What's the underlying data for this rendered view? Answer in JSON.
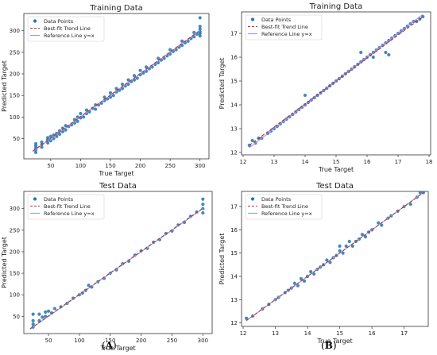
{
  "figure": {
    "letters": {
      "a": "A",
      "b": "B"
    },
    "colors": {
      "points": "#1f77b4",
      "trend": "#d62728",
      "reference": "#9b8ff0",
      "reference_test": "#7aa6e0",
      "axis": "#333333"
    }
  },
  "chart_data": [
    {
      "type": "scatter",
      "title": "Training Data",
      "xlabel": "True Target",
      "ylabel": "Predicted Target",
      "xlim": [
        5,
        315
      ],
      "ylim": [
        3,
        340
      ],
      "xticks": [
        50,
        100,
        150,
        200,
        250,
        300
      ],
      "yticks": [
        50,
        100,
        150,
        200,
        250,
        300
      ],
      "grid": false,
      "legend": {
        "placement": "top-left",
        "entries": [
          "Data Points",
          "Best-fit Trend Line",
          "Reference Line y=x"
        ]
      },
      "trend_line": [
        [
          20,
          21
        ],
        [
          300,
          301
        ]
      ],
      "reference_line": [
        [
          20,
          20
        ],
        [
          300,
          300
        ]
      ],
      "points": [
        [
          25,
          18
        ],
        [
          25,
          24
        ],
        [
          25,
          28
        ],
        [
          25,
          33
        ],
        [
          25,
          38
        ],
        [
          35,
          30
        ],
        [
          35,
          36
        ],
        [
          35,
          42
        ],
        [
          45,
          40
        ],
        [
          45,
          47
        ],
        [
          45,
          52
        ],
        [
          50,
          45
        ],
        [
          50,
          55
        ],
        [
          55,
          50
        ],
        [
          55,
          58
        ],
        [
          60,
          55
        ],
        [
          60,
          62
        ],
        [
          65,
          60
        ],
        [
          65,
          68
        ],
        [
          70,
          66
        ],
        [
          70,
          74
        ],
        [
          75,
          70
        ],
        [
          75,
          80
        ],
        [
          80,
          78
        ],
        [
          85,
          82
        ],
        [
          90,
          86
        ],
        [
          90,
          94
        ],
        [
          95,
          90
        ],
        [
          95,
          100
        ],
        [
          100,
          98
        ],
        [
          100,
          108
        ],
        [
          105,
          100
        ],
        [
          110,
          108
        ],
        [
          110,
          116
        ],
        [
          115,
          112
        ],
        [
          120,
          120
        ],
        [
          125,
          118
        ],
        [
          125,
          128
        ],
        [
          130,
          128
        ],
        [
          135,
          132
        ],
        [
          140,
          138
        ],
        [
          140,
          146
        ],
        [
          145,
          142
        ],
        [
          150,
          146
        ],
        [
          150,
          156
        ],
        [
          155,
          150
        ],
        [
          160,
          158
        ],
        [
          160,
          166
        ],
        [
          165,
          162
        ],
        [
          170,
          166
        ],
        [
          170,
          176
        ],
        [
          175,
          172
        ],
        [
          180,
          176
        ],
        [
          180,
          186
        ],
        [
          185,
          182
        ],
        [
          190,
          186
        ],
        [
          190,
          196
        ],
        [
          195,
          190
        ],
        [
          200,
          198
        ],
        [
          200,
          208
        ],
        [
          205,
          202
        ],
        [
          210,
          206
        ],
        [
          210,
          216
        ],
        [
          215,
          212
        ],
        [
          220,
          216
        ],
        [
          225,
          222
        ],
        [
          230,
          226
        ],
        [
          230,
          236
        ],
        [
          235,
          232
        ],
        [
          240,
          236
        ],
        [
          245,
          242
        ],
        [
          250,
          246
        ],
        [
          250,
          256
        ],
        [
          255,
          252
        ],
        [
          260,
          256
        ],
        [
          265,
          262
        ],
        [
          270,
          266
        ],
        [
          270,
          276
        ],
        [
          275,
          272
        ],
        [
          280,
          276
        ],
        [
          285,
          282
        ],
        [
          290,
          286
        ],
        [
          290,
          296
        ],
        [
          295,
          292
        ],
        [
          300,
          288
        ],
        [
          300,
          294
        ],
        [
          300,
          298
        ],
        [
          300,
          304
        ],
        [
          300,
          310
        ],
        [
          300,
          330
        ]
      ]
    },
    {
      "type": "scatter",
      "title": "Training Data",
      "xlabel": "True Target",
      "ylabel": "Predicted Target",
      "xlim": [
        11.95,
        18.05
      ],
      "ylim": [
        11.9,
        17.9
      ],
      "xticks": [
        12,
        13,
        14,
        15,
        16,
        17,
        18
      ],
      "yticks": [
        12,
        13,
        14,
        15,
        16,
        17
      ],
      "grid": false,
      "legend": {
        "placement": "top-left",
        "entries": [
          "Data Points",
          "Best-fit Trend Line",
          "Reference Line y=x"
        ]
      },
      "trend_line": [
        [
          12.2,
          12.3
        ],
        [
          17.8,
          17.7
        ]
      ],
      "reference_line": [
        [
          12.2,
          12.2
        ],
        [
          17.8,
          17.8
        ]
      ],
      "points": [
        [
          12.2,
          12.3
        ],
        [
          12.3,
          12.5
        ],
        [
          12.4,
          12.4
        ],
        [
          12.5,
          12.6
        ],
        [
          12.6,
          12.6
        ],
        [
          12.8,
          12.8
        ],
        [
          12.9,
          12.9
        ],
        [
          13.0,
          13.0
        ],
        [
          13.1,
          13.1
        ],
        [
          13.2,
          13.2
        ],
        [
          13.3,
          13.3
        ],
        [
          13.4,
          13.4
        ],
        [
          13.5,
          13.5
        ],
        [
          13.6,
          13.6
        ],
        [
          13.7,
          13.7
        ],
        [
          13.8,
          13.8
        ],
        [
          13.9,
          13.9
        ],
        [
          14.0,
          14.0
        ],
        [
          14.0,
          14.4
        ],
        [
          14.1,
          14.1
        ],
        [
          14.2,
          14.2
        ],
        [
          14.3,
          14.3
        ],
        [
          14.4,
          14.4
        ],
        [
          14.5,
          14.5
        ],
        [
          14.6,
          14.6
        ],
        [
          14.7,
          14.7
        ],
        [
          14.8,
          14.8
        ],
        [
          14.9,
          14.9
        ],
        [
          15.0,
          15.0
        ],
        [
          15.1,
          15.1
        ],
        [
          15.2,
          15.2
        ],
        [
          15.3,
          15.3
        ],
        [
          15.4,
          15.4
        ],
        [
          15.5,
          15.5
        ],
        [
          15.6,
          15.6
        ],
        [
          15.7,
          15.7
        ],
        [
          15.8,
          15.8
        ],
        [
          15.9,
          15.9
        ],
        [
          15.8,
          16.2
        ],
        [
          16.0,
          16.0
        ],
        [
          16.1,
          16.1
        ],
        [
          16.2,
          16.2
        ],
        [
          16.2,
          16.0
        ],
        [
          16.3,
          16.3
        ],
        [
          16.4,
          16.4
        ],
        [
          16.5,
          16.5
        ],
        [
          16.6,
          16.6
        ],
        [
          16.7,
          16.7
        ],
        [
          16.6,
          16.2
        ],
        [
          16.7,
          16.1
        ],
        [
          16.8,
          16.8
        ],
        [
          16.9,
          16.9
        ],
        [
          17.0,
          17.0
        ],
        [
          17.1,
          17.1
        ],
        [
          17.2,
          17.2
        ],
        [
          17.3,
          17.3
        ],
        [
          17.4,
          17.4
        ],
        [
          17.5,
          17.5
        ],
        [
          17.6,
          17.5
        ],
        [
          17.7,
          17.6
        ],
        [
          17.8,
          17.7
        ]
      ]
    },
    {
      "type": "scatter",
      "title": "Test Data",
      "xlabel": "True Target",
      "ylabel": "Predicted Target",
      "xlim": [
        10,
        315
      ],
      "ylim": [
        10,
        340
      ],
      "xticks": [
        50,
        100,
        150,
        200,
        250,
        300
      ],
      "yticks": [
        50,
        100,
        150,
        200,
        250,
        300
      ],
      "grid": false,
      "legend": {
        "placement": "top-left",
        "entries": [
          "Data Points",
          "Best-fit Trend Line",
          "Reference Line y=x"
        ]
      },
      "trend_line": [
        [
          20,
          21
        ],
        [
          300,
          301
        ]
      ],
      "reference_line": [
        [
          20,
          20
        ],
        [
          300,
          300
        ]
      ],
      "points": [
        [
          25,
          25
        ],
        [
          25,
          32
        ],
        [
          25,
          40
        ],
        [
          25,
          55
        ],
        [
          35,
          40
        ],
        [
          35,
          55
        ],
        [
          40,
          48
        ],
        [
          45,
          50
        ],
        [
          45,
          60
        ],
        [
          50,
          62
        ],
        [
          55,
          58
        ],
        [
          60,
          68
        ],
        [
          70,
          72
        ],
        [
          80,
          80
        ],
        [
          90,
          92
        ],
        [
          100,
          100
        ],
        [
          105,
          104
        ],
        [
          110,
          110
        ],
        [
          115,
          122
        ],
        [
          120,
          118
        ],
        [
          130,
          130
        ],
        [
          140,
          138
        ],
        [
          150,
          150
        ],
        [
          160,
          158
        ],
        [
          170,
          172
        ],
        [
          180,
          178
        ],
        [
          190,
          192
        ],
        [
          200,
          202
        ],
        [
          210,
          208
        ],
        [
          220,
          222
        ],
        [
          230,
          228
        ],
        [
          240,
          242
        ],
        [
          250,
          248
        ],
        [
          260,
          262
        ],
        [
          270,
          268
        ],
        [
          280,
          282
        ],
        [
          290,
          292
        ],
        [
          300,
          300
        ],
        [
          300,
          290
        ],
        [
          300,
          310
        ],
        [
          300,
          322
        ]
      ]
    },
    {
      "type": "scatter",
      "title": "Test Data",
      "xlabel": "True Target",
      "ylabel": "Predicted Target",
      "xlim": [
        11.95,
        17.75
      ],
      "ylim": [
        11.85,
        17.65
      ],
      "xticks": [
        12,
        13,
        14,
        15,
        16,
        17
      ],
      "yticks": [
        12,
        13,
        14,
        15,
        16,
        17
      ],
      "grid": false,
      "legend": {
        "placement": "top-left",
        "entries": [
          "Data Points",
          "Best-fit Trend Line",
          "Reference Line y=x"
        ]
      },
      "trend_line": [
        [
          12.1,
          12.1
        ],
        [
          17.6,
          17.6
        ]
      ],
      "reference_line": [
        [
          12.1,
          12.1
        ],
        [
          17.6,
          17.6
        ]
      ],
      "points": [
        [
          12.1,
          12.2
        ],
        [
          12.3,
          12.3
        ],
        [
          12.6,
          12.6
        ],
        [
          12.8,
          12.8
        ],
        [
          13.0,
          13.0
        ],
        [
          13.1,
          13.1
        ],
        [
          13.3,
          13.3
        ],
        [
          13.4,
          13.4
        ],
        [
          13.5,
          13.5
        ],
        [
          13.6,
          13.7
        ],
        [
          13.7,
          13.6
        ],
        [
          13.8,
          13.9
        ],
        [
          13.9,
          13.8
        ],
        [
          14.0,
          14.0
        ],
        [
          14.1,
          14.2
        ],
        [
          14.2,
          14.1
        ],
        [
          14.3,
          14.3
        ],
        [
          14.4,
          14.4
        ],
        [
          14.5,
          14.5
        ],
        [
          14.6,
          14.7
        ],
        [
          14.7,
          14.6
        ],
        [
          14.8,
          14.8
        ],
        [
          14.9,
          14.9
        ],
        [
          15.0,
          15.1
        ],
        [
          15.0,
          15.3
        ],
        [
          15.1,
          15.0
        ],
        [
          15.2,
          15.3
        ],
        [
          15.3,
          15.5
        ],
        [
          15.4,
          15.3
        ],
        [
          15.5,
          15.5
        ],
        [
          15.6,
          15.6
        ],
        [
          15.7,
          15.8
        ],
        [
          15.8,
          15.7
        ],
        [
          15.9,
          15.9
        ],
        [
          16.0,
          16.0
        ],
        [
          16.2,
          16.3
        ],
        [
          16.3,
          16.2
        ],
        [
          16.5,
          16.5
        ],
        [
          16.6,
          16.6
        ],
        [
          16.8,
          16.8
        ],
        [
          17.0,
          17.0
        ],
        [
          17.2,
          17.1
        ],
        [
          17.4,
          17.4
        ],
        [
          17.5,
          17.6
        ],
        [
          17.6,
          17.6
        ]
      ]
    }
  ]
}
